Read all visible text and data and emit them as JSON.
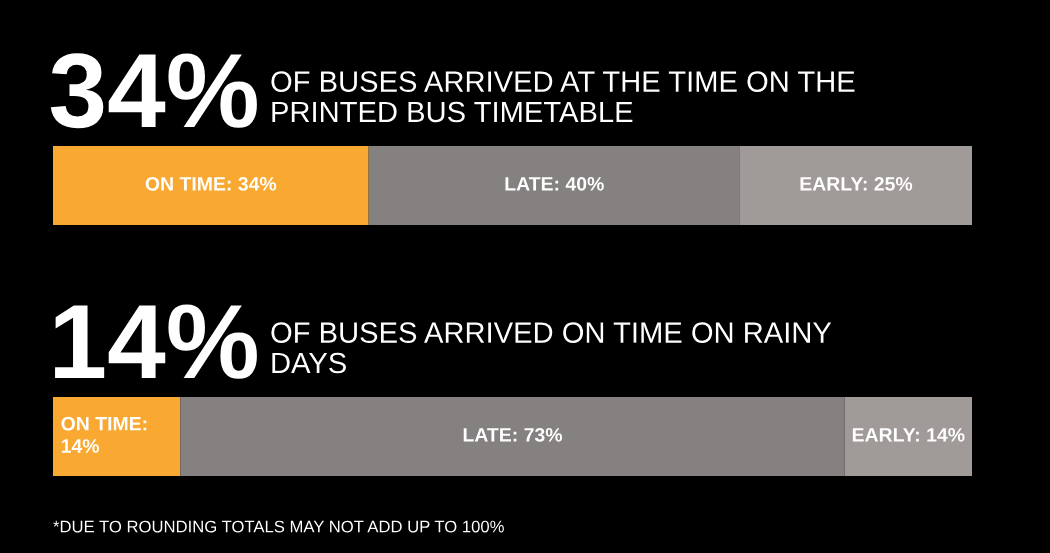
{
  "chart_data": [
    {
      "type": "bar",
      "orientation": "horizontal",
      "stacked": true,
      "title": "34%",
      "subtitle": "OF BUSES ARRIVED AT THE TIME ON THE PRINTED BUS TIMETABLE",
      "categories": [
        null
      ],
      "series": [
        {
          "color": "#f9a932",
          "values": [
            34
          ],
          "value_labels": [
            "ON TIME: 34%"
          ]
        },
        {
          "color": "#858180",
          "values": [
            40
          ],
          "value_labels": [
            "LATE: 40%"
          ]
        },
        {
          "color": "#a09a98",
          "values": [
            25
          ],
          "value_labels": [
            "EARLY: 25%"
          ]
        }
      ],
      "legend": false
    },
    {
      "type": "bar",
      "orientation": "horizontal",
      "stacked": true,
      "title": "14%",
      "subtitle": "OF BUSES ARRIVED ON TIME ON RAINY DAYS",
      "categories": [
        null
      ],
      "series": [
        {
          "color": "#f9a932",
          "values": [
            14
          ],
          "value_labels": [
            "ON TIME: 14%"
          ]
        },
        {
          "color": "#858180",
          "values": [
            73
          ],
          "value_labels": [
            "LATE: 73%"
          ]
        },
        {
          "color": "#a09a98",
          "values": [
            14
          ],
          "value_labels": [
            "EARLY: 14%"
          ]
        }
      ],
      "legend": false,
      "annotations": [
        "*DUE TO ROUNDING TOTALS MAY NOT ADD UP TO 100%"
      ]
    }
  ]
}
